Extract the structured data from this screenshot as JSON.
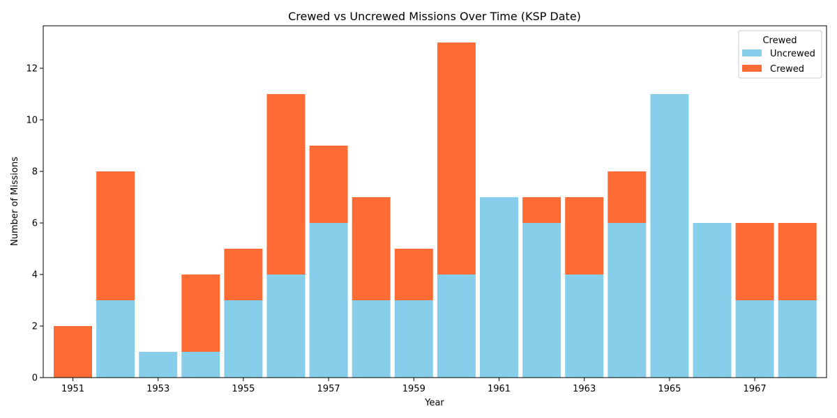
{
  "chart_data": {
    "type": "bar",
    "stacked": true,
    "title": "Crewed vs Uncrewed Missions Over Time (KSP Date)",
    "xlabel": "Year",
    "ylabel": "Number of Missions",
    "categories": [
      "1951",
      "1952",
      "1953",
      "1954",
      "1955",
      "1956",
      "1957",
      "1958",
      "1959",
      "1960",
      "1961",
      "1962",
      "1963",
      "1964",
      "1965",
      "1966",
      "1967",
      "1968"
    ],
    "xtick_labels": [
      "1951",
      "",
      "1953",
      "",
      "1955",
      "",
      "1957",
      "",
      "1959",
      "",
      "1961",
      "",
      "1963",
      "",
      "1965",
      "",
      "1967",
      ""
    ],
    "yticks": [
      0,
      2,
      4,
      6,
      8,
      10,
      12
    ],
    "ylim": [
      0,
      13.65
    ],
    "grid": false,
    "legend": {
      "title": "Crewed",
      "position": "top-right"
    },
    "series": [
      {
        "name": "Uncrewed",
        "color": "#87CEEB",
        "values": [
          0,
          3,
          1,
          1,
          3,
          4,
          6,
          3,
          3,
          4,
          7,
          6,
          4,
          6,
          11,
          6,
          3,
          3
        ]
      },
      {
        "name": "Crewed",
        "color": "#FF6B35",
        "values": [
          2,
          5,
          0,
          3,
          2,
          7,
          3,
          4,
          2,
          9,
          0,
          1,
          3,
          2,
          0,
          0,
          3,
          3
        ]
      }
    ]
  }
}
